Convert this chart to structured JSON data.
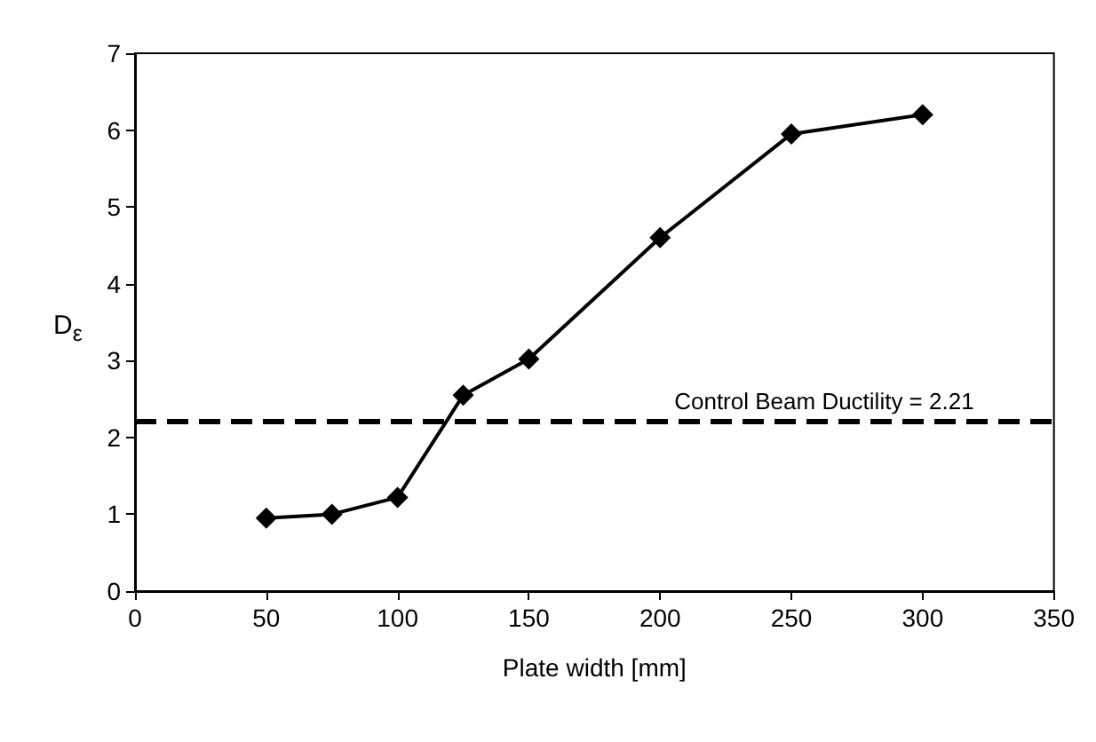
{
  "chart_data": {
    "type": "line",
    "xlabel": "Plate width [mm]",
    "ylabel": "D$_{ε}$",
    "x": [
      50,
      75,
      100,
      125,
      150,
      200,
      250,
      300
    ],
    "series": [
      {
        "color": "#000000",
        "values": [
          0.95,
          1.0,
          1.22,
          2.55,
          3.02,
          4.6,
          5.95,
          6.2
        ]
      }
    ],
    "xlim": [
      0,
      350
    ],
    "xticks": [
      0,
      50,
      100,
      150,
      200,
      250,
      300,
      350
    ],
    "ylim": [
      0,
      7
    ],
    "yticks": [
      0,
      1,
      2,
      3,
      4,
      5,
      6,
      7
    ],
    "ref_lines": [
      {
        "axis": "y",
        "value": 2.21,
        "label": "Control Beam Ductility = 2.21",
        "color": "#000000",
        "line_style": "dashed"
      }
    ],
    "grid": false,
    "marker": "diamond",
    "line_style": "solid"
  }
}
